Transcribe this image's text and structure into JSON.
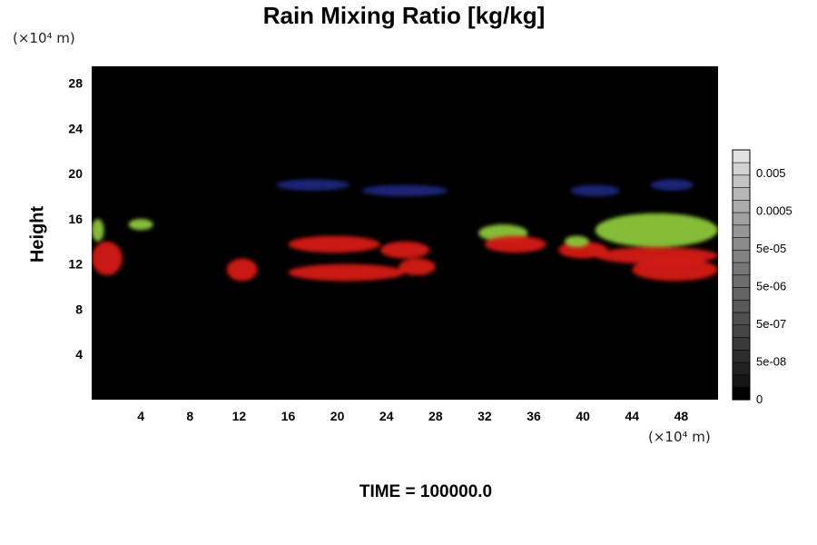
{
  "chart_data": {
    "type": "heatmap",
    "title": "Rain Mixing Ratio [kg/kg]",
    "ylabel": "Height",
    "y_unit": "(×10⁴ m)",
    "x_unit": "(×10⁴ m)",
    "xlim": [
      0,
      51
    ],
    "ylim": [
      0,
      29.5
    ],
    "x_ticks": [
      4,
      8,
      12,
      16,
      20,
      24,
      28,
      32,
      36,
      40,
      44,
      48
    ],
    "y_ticks": [
      4,
      8,
      12,
      16,
      20,
      24,
      28
    ],
    "background": "#000000",
    "colorbar": {
      "tick_labels": [
        "0.005",
        "0.0005",
        "5e-05",
        "5e-06",
        "5e-07",
        "5e-08",
        "0"
      ],
      "colors": [
        "#000000",
        "#151515",
        "#222222",
        "#2e2e2e",
        "#3a3a3a",
        "#454545",
        "#4f4f4f",
        "#595959",
        "#636363",
        "#6d6d6d",
        "#777777",
        "#818181",
        "#8b8b8b",
        "#959595",
        "#a0a0a0",
        "#ababab",
        "#b7b7b7",
        "#c4c4c4",
        "#d2d2d2",
        "#e2e2e2"
      ]
    },
    "colors": {
      "red": "#d41a14",
      "green": "#8cc63a",
      "blue": "#1f2a8a"
    },
    "regions": [
      {
        "color": "red",
        "x": [
          0,
          2.5
        ],
        "y": [
          11,
          14
        ]
      },
      {
        "color": "green",
        "x": [
          0,
          1
        ],
        "y": [
          14,
          16
        ]
      },
      {
        "color": "green",
        "x": [
          3,
          5
        ],
        "y": [
          15,
          16
        ]
      },
      {
        "color": "red",
        "x": [
          11,
          13.5
        ],
        "y": [
          10.5,
          12.5
        ]
      },
      {
        "color": "red",
        "x": [
          16,
          23.5
        ],
        "y": [
          13,
          14.5
        ]
      },
      {
        "color": "red",
        "x": [
          16,
          25.5
        ],
        "y": [
          10.5,
          12
        ]
      },
      {
        "color": "red",
        "x": [
          23.5,
          27.5
        ],
        "y": [
          12.5,
          14
        ]
      },
      {
        "color": "red",
        "x": [
          25,
          28
        ],
        "y": [
          11,
          12.5
        ]
      },
      {
        "color": "blue",
        "x": [
          15,
          21
        ],
        "y": [
          18.5,
          19.5
        ]
      },
      {
        "color": "blue",
        "x": [
          22,
          29
        ],
        "y": [
          18,
          19
        ]
      },
      {
        "color": "green",
        "x": [
          31.5,
          35.5
        ],
        "y": [
          14,
          15.5
        ]
      },
      {
        "color": "red",
        "x": [
          32,
          37
        ],
        "y": [
          13,
          14.5
        ]
      },
      {
        "color": "red",
        "x": [
          38,
          42
        ],
        "y": [
          12.5,
          14
        ]
      },
      {
        "color": "green",
        "x": [
          38.5,
          40.5
        ],
        "y": [
          13.5,
          14.5
        ]
      },
      {
        "color": "green",
        "x": [
          41,
          51
        ],
        "y": [
          13.5,
          16.5
        ]
      },
      {
        "color": "red",
        "x": [
          41,
          51
        ],
        "y": [
          12,
          13.5
        ]
      },
      {
        "color": "red",
        "x": [
          44,
          51
        ],
        "y": [
          10.5,
          12.5
        ]
      },
      {
        "color": "blue",
        "x": [
          39,
          43
        ],
        "y": [
          18,
          19
        ]
      },
      {
        "color": "blue",
        "x": [
          45.5,
          49
        ],
        "y": [
          18.5,
          19.5
        ]
      }
    ]
  },
  "time_label": "TIME = 100000.0"
}
